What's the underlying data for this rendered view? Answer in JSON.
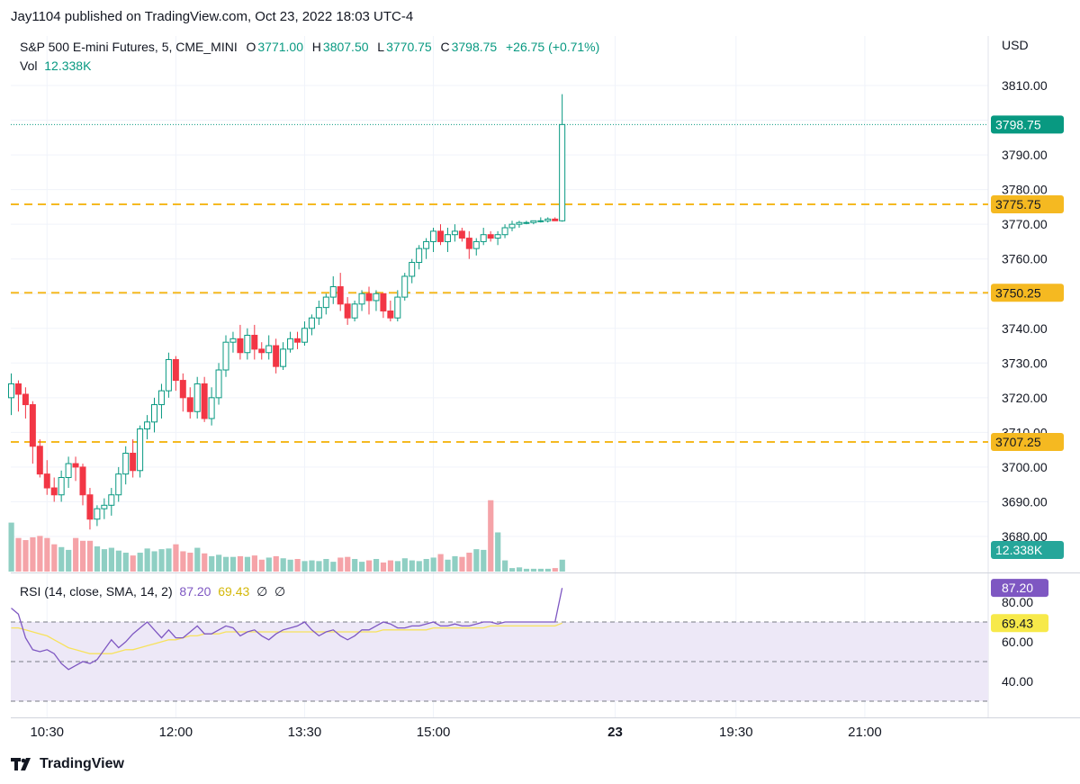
{
  "header": {
    "published": "Jay1104 published on TradingView.com, Oct 23, 2022 18:03 UTC-4"
  },
  "legend": {
    "symbol": "S&P 500 E-mini Futures, 5, CME_MINI",
    "open_label": "O",
    "open": "3771.00",
    "high_label": "H",
    "high": "3807.50",
    "low_label": "L",
    "low": "3770.75",
    "close_label": "C",
    "close": "3798.75",
    "change": "+26.75 (+0.71%)",
    "vol_label": "Vol",
    "vol": "12.338K"
  },
  "rsi_legend": {
    "label": "RSI (14, close, SMA, 14, 2)",
    "rsi": "87.20",
    "sma": "69.43",
    "extra1": "∅",
    "extra2": "∅"
  },
  "footer": {
    "brand": "TradingView"
  },
  "colors": {
    "up": "#089981",
    "down": "#f23645",
    "vol_up": "#8fcfc3",
    "vol_down": "#f5a3a8",
    "level": "#f5b921",
    "rsi": "#7e57c2",
    "rsi_sma": "#f7e25c",
    "rsi_band": "#ede8f7",
    "price_line": "#089981"
  },
  "chart_data": {
    "type": "candlestick",
    "currency": "USD",
    "ylim": [
      3674,
      3813
    ],
    "y_ticks": [
      "3810.00",
      "3800.00",
      "3790.00",
      "3780.00",
      "3770.00",
      "3760.00",
      "3750.00",
      "3740.00",
      "3730.00",
      "3720.00",
      "3710.00",
      "3700.00",
      "3690.00",
      "3680.00"
    ],
    "x_ticks": [
      {
        "index": 5,
        "label": "10:30",
        "bold": false
      },
      {
        "index": 23,
        "label": "12:00",
        "bold": false
      },
      {
        "index": 41,
        "label": "13:30",
        "bold": false
      },
      {
        "index": 59,
        "label": "15:00",
        "bold": false
      },
      {
        "index": 84.4,
        "label": "23",
        "bold": true
      },
      {
        "index": 101.3,
        "label": "19:30",
        "bold": false
      },
      {
        "index": 119.3,
        "label": "21:00",
        "bold": false
      }
    ],
    "levels": [
      {
        "value": 3775.75,
        "label": "3775.75"
      },
      {
        "value": 3750.25,
        "label": "3750.25"
      },
      {
        "value": 3707.25,
        "label": "3707.25"
      }
    ],
    "last_price": {
      "value": 3798.75,
      "label": "3798.75"
    },
    "volume_label": "12.338K",
    "vol_max": 19.3,
    "candles": [
      [
        3720,
        3727,
        3715,
        3724,
        7
      ],
      [
        3724,
        3725,
        3716,
        3721,
        4.8
      ],
      [
        3721,
        3723,
        3714,
        3718,
        4.5
      ],
      [
        3718,
        3719,
        3701,
        3706,
        4.9
      ],
      [
        3706,
        3708,
        3697,
        3698,
        5.1
      ],
      [
        3698,
        3702,
        3692,
        3694,
        4.8
      ],
      [
        3694,
        3697,
        3690,
        3692,
        3.9
      ],
      [
        3692,
        3699,
        3690,
        3697,
        3.5
      ],
      [
        3697,
        3703,
        3694,
        3701,
        3.1
      ],
      [
        3701,
        3703,
        3696,
        3700,
        4.8
      ],
      [
        3700,
        3701,
        3689,
        3692,
        4.4
      ],
      [
        3692,
        3694,
        3682,
        3685,
        4.4
      ],
      [
        3685,
        3689,
        3683,
        3688,
        3.6
      ],
      [
        3688,
        3691,
        3685,
        3689,
        3.2
      ],
      [
        3689,
        3694,
        3686,
        3692,
        3.4
      ],
      [
        3692,
        3700,
        3690,
        3698,
        3.0
      ],
      [
        3698,
        3706,
        3695,
        3704,
        2.7
      ],
      [
        3704,
        3708,
        3697,
        3699,
        2.3
      ],
      [
        3699,
        3712,
        3697,
        3711,
        2.7
      ],
      [
        3711,
        3715,
        3708,
        3713,
        3.3
      ],
      [
        3713,
        3720,
        3710,
        3718,
        2.9
      ],
      [
        3718,
        3724,
        3714,
        3722,
        3.2
      ],
      [
        3722,
        3733,
        3720,
        3731,
        3.3
      ],
      [
        3731,
        3732,
        3722,
        3725,
        3.9
      ],
      [
        3725,
        3727,
        3716,
        3720,
        2.9
      ],
      [
        3720,
        3723,
        3714,
        3716,
        2.7
      ],
      [
        3716,
        3726,
        3714,
        3724,
        3.4
      ],
      [
        3724,
        3726,
        3713,
        3714,
        2.6
      ],
      [
        3714,
        3723,
        3712,
        3720,
        2.2
      ],
      [
        3720,
        3730,
        3718,
        3728,
        2.4
      ],
      [
        3728,
        3738,
        3726,
        3736,
        2.1
      ],
      [
        3736,
        3739,
        3733,
        3737,
        2.1
      ],
      [
        3737,
        3741,
        3731,
        3733,
        2.2
      ],
      [
        3733,
        3740,
        3731,
        3738,
        2.1
      ],
      [
        3738,
        3741,
        3731,
        3734,
        2.3
      ],
      [
        3734,
        3736,
        3731,
        3733,
        1.7
      ],
      [
        3733,
        3738,
        3731,
        3735,
        2.0
      ],
      [
        3735,
        3737,
        3727,
        3729,
        2.2
      ],
      [
        3729,
        3736,
        3728,
        3734,
        1.9
      ],
      [
        3734,
        3739,
        3733,
        3737,
        1.7
      ],
      [
        3737,
        3739,
        3734,
        3736,
        1.8
      ],
      [
        3736,
        3742,
        3735,
        3740,
        1.5
      ],
      [
        3740,
        3744,
        3738,
        3743,
        1.6
      ],
      [
        3743,
        3748,
        3741,
        3746,
        1.5
      ],
      [
        3746,
        3750,
        3744,
        3749,
        1.8
      ],
      [
        3749,
        3755,
        3747,
        3752,
        1.4
      ],
      [
        3752,
        3756,
        3745,
        3747,
        2.0
      ],
      [
        3747,
        3749,
        3741,
        3743,
        2.1
      ],
      [
        3743,
        3748,
        3742,
        3747,
        1.8
      ],
      [
        3747,
        3751,
        3745,
        3750,
        1.4
      ],
      [
        3750,
        3752,
        3744,
        3748,
        1.6
      ],
      [
        3748,
        3751,
        3745,
        3750,
        1.8
      ],
      [
        3750,
        3750,
        3743,
        3745,
        1.3
      ],
      [
        3745,
        3748,
        3742,
        3743,
        1.6
      ],
      [
        3743,
        3751,
        3742,
        3749,
        1.5
      ],
      [
        3749,
        3756,
        3748,
        3755,
        1.9
      ],
      [
        3755,
        3760,
        3753,
        3759,
        1.6
      ],
      [
        3759,
        3764,
        3757,
        3763,
        1.5
      ],
      [
        3763,
        3766,
        3760,
        3765,
        1.8
      ],
      [
        3765,
        3769,
        3762,
        3768,
        2.0
      ],
      [
        3768,
        3770,
        3764,
        3765,
        2.5
      ],
      [
        3765,
        3769,
        3762,
        3767,
        1.7
      ],
      [
        3767,
        3770,
        3765,
        3768,
        2.2
      ],
      [
        3768,
        3769,
        3765,
        3766,
        2.1
      ],
      [
        3766,
        3768,
        3760,
        3763,
        2.7
      ],
      [
        3763,
        3766,
        3761,
        3765,
        3.2
      ],
      [
        3765,
        3769,
        3764,
        3767,
        3.1
      ],
      [
        3767,
        3768,
        3765,
        3766,
        10.2
      ],
      [
        3766,
        3768,
        3764,
        3767,
        5.6
      ],
      [
        3767,
        3770,
        3766,
        3769,
        1.6
      ],
      [
        3769,
        3771,
        3768,
        3770,
        0.5
      ],
      [
        3770,
        3771,
        3769,
        3770.5,
        0.6
      ],
      [
        3770.5,
        3771,
        3770,
        3770.5,
        0.4
      ],
      [
        3770.5,
        3771,
        3770,
        3771,
        0.4
      ],
      [
        3771,
        3772,
        3770.5,
        3771,
        0.4
      ],
      [
        3771,
        3772,
        3770.5,
        3771.5,
        0.4
      ],
      [
        3771.5,
        3772,
        3771,
        3771,
        0.5
      ],
      [
        3771,
        3807.5,
        3770.75,
        3798.75,
        1.7
      ]
    ],
    "rsi": {
      "levels": [
        70,
        50,
        30
      ],
      "ylim": [
        26,
        92
      ],
      "y_ticks": [
        "80.00",
        "60.00",
        "40.00"
      ],
      "rsi_values": [
        77,
        74,
        62,
        56,
        55,
        56,
        54,
        49,
        46,
        48,
        50,
        49,
        51,
        56,
        61,
        57,
        60,
        64,
        67,
        70,
        66,
        62,
        66,
        62,
        62,
        65,
        68,
        64,
        64,
        66,
        68,
        67,
        63,
        65,
        66,
        63,
        61,
        64,
        66,
        67,
        68,
        70,
        66,
        63,
        65,
        66,
        63,
        61,
        63,
        66,
        66,
        68,
        70,
        69,
        67,
        67,
        68,
        68,
        69,
        70,
        68,
        68,
        69,
        68,
        68,
        69,
        70,
        70,
        69,
        70,
        70,
        70,
        70,
        70,
        70,
        70,
        70,
        87.2
      ],
      "sma_values": [
        67,
        67,
        66,
        65,
        64,
        63,
        61,
        59,
        57,
        56,
        55,
        54,
        54,
        54,
        54,
        55,
        56,
        56,
        57,
        58,
        59,
        60,
        61,
        61,
        62,
        63,
        63,
        64,
        64,
        64,
        65,
        65,
        65,
        65,
        65,
        65,
        65,
        65,
        65,
        65,
        65,
        65,
        65,
        65,
        65,
        65,
        65,
        65,
        65,
        65,
        65,
        65,
        66,
        66,
        66,
        66,
        66,
        66,
        66,
        67,
        67,
        67,
        67,
        67,
        67,
        67,
        67,
        68,
        68,
        68,
        68,
        68,
        68,
        68,
        68,
        68,
        68,
        69.43
      ]
    }
  }
}
